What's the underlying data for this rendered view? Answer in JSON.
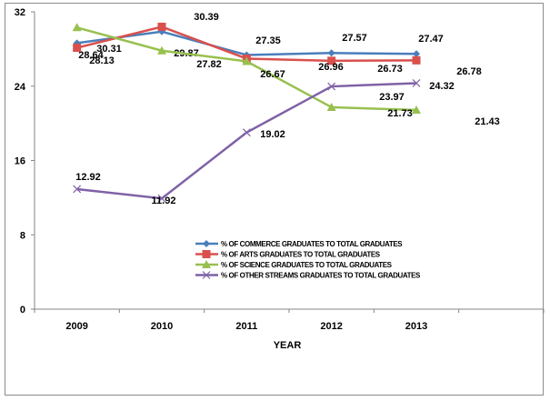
{
  "chart_data": {
    "type": "line",
    "title": "",
    "xlabel": "YEAR",
    "ylabel": "",
    "categories": [
      "2009",
      "2010",
      "2011",
      "2012",
      "2013"
    ],
    "ylim": [
      0,
      32
    ],
    "yticks": [
      "0",
      "8",
      "16",
      "24",
      "32"
    ],
    "grid": false,
    "legend_position": "center-bottom",
    "series": [
      {
        "name": "% OF COMMERCE GRADUATES TO TOTAL GRADUATES",
        "color": "#4a7ebb",
        "marker": "diamond",
        "values": [
          28.64,
          29.87,
          27.35,
          27.57,
          27.47
        ],
        "labels": [
          "28.64",
          "29.87",
          "27.35",
          "27.57",
          "27.47"
        ]
      },
      {
        "name": "% OF ARTS GRADUATES TO TOTAL GRADUATES",
        "color": "#d9504d",
        "marker": "square",
        "values": [
          28.13,
          30.39,
          26.96,
          26.73,
          26.78
        ],
        "labels": [
          "28.13",
          "30.39",
          "26.96",
          "26.73",
          "26.78"
        ]
      },
      {
        "name": "% OF SCIENCE GRADUATES TO TOTAL GRADUATES",
        "color": "#98c04f",
        "marker": "triangle",
        "values": [
          30.31,
          27.82,
          26.67,
          21.73,
          21.43
        ],
        "labels": [
          "30.31",
          "27.82",
          "26.67",
          "21.73",
          "21.43"
        ]
      },
      {
        "name": "% OF OTHER STREAMS GRADUATES TO TOTAL GRADUATES",
        "color": "#7f62a6",
        "marker": "x",
        "values": [
          12.92,
          11.92,
          19.02,
          23.97,
          24.32
        ],
        "labels": [
          "12.92",
          "11.92",
          "19.02",
          "23.97",
          "24.32"
        ]
      }
    ]
  }
}
